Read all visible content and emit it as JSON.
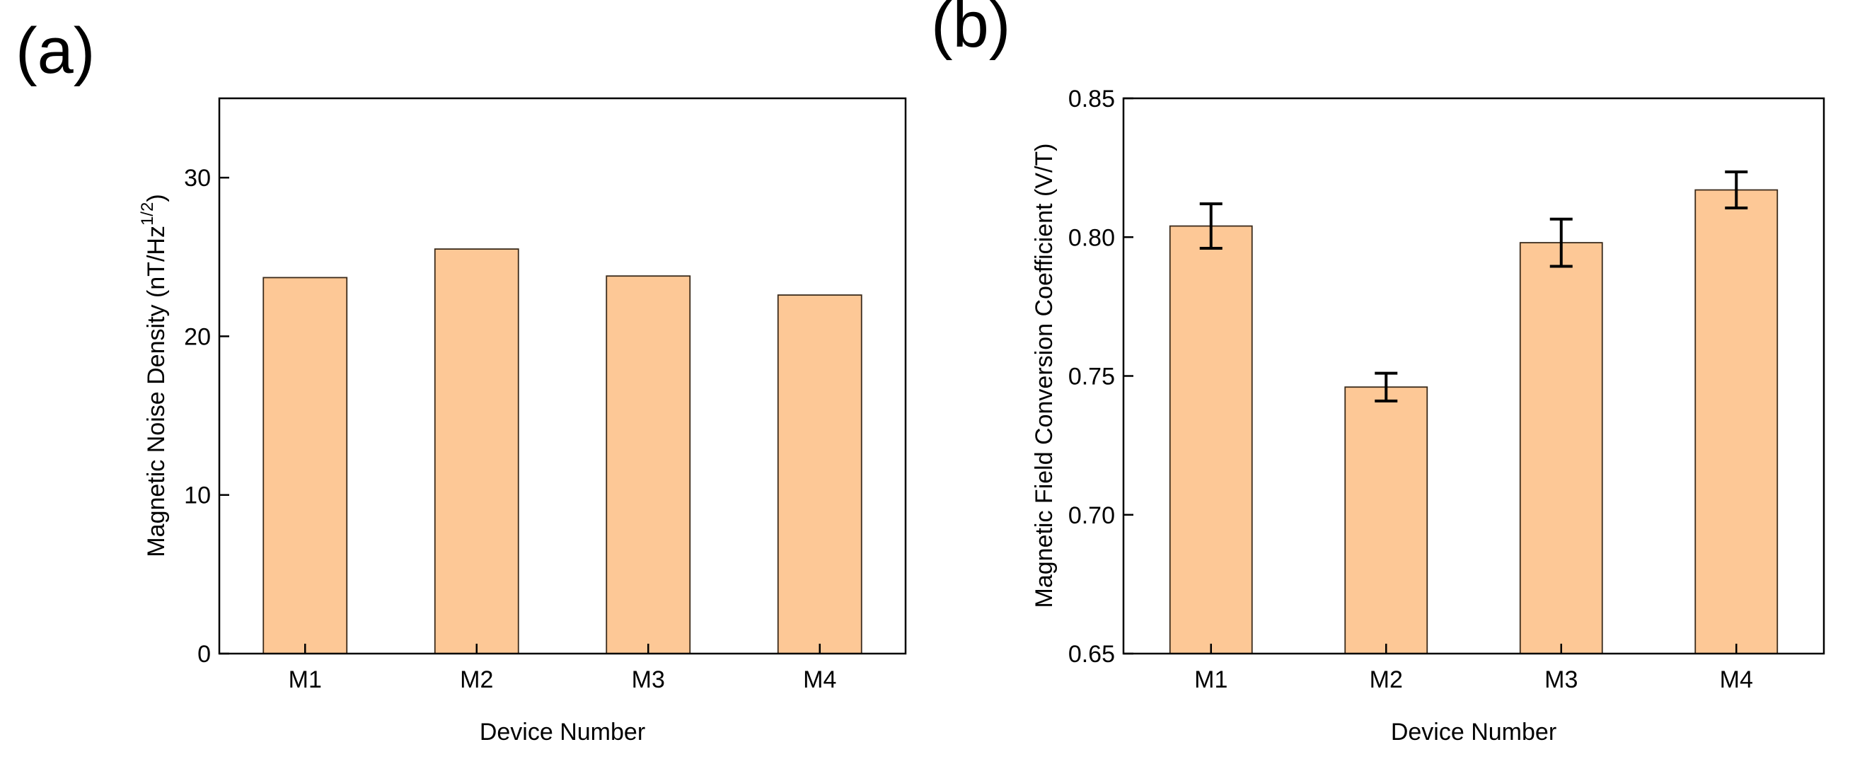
{
  "panels": {
    "a": {
      "label": "(a)"
    },
    "b": {
      "label": "(b)"
    }
  },
  "colors": {
    "bar_fill": "#FDC896",
    "bar_stroke": "#3a2a1a"
  },
  "chart_data": [
    {
      "panel": "(a)",
      "type": "bar",
      "categories": [
        "M1",
        "M2",
        "M3",
        "M4"
      ],
      "values": [
        23.7,
        25.5,
        23.8,
        22.6
      ],
      "xlabel": "Device Number",
      "ylabel_main": "Magnetic Noise Density (nT/Hz",
      "ylabel_sup": "1/2",
      "ylabel_end": ")",
      "ylim": [
        0,
        35
      ],
      "yticks": [
        0,
        10,
        20,
        30
      ],
      "ytick_labels": [
        "0",
        "10",
        "20",
        "30"
      ],
      "grid": false
    },
    {
      "panel": "(b)",
      "type": "bar",
      "categories": [
        "M1",
        "M2",
        "M3",
        "M4"
      ],
      "values": [
        0.804,
        0.746,
        0.798,
        0.817
      ],
      "errors": [
        0.008,
        0.005,
        0.0085,
        0.0065
      ],
      "xlabel": "Device Number",
      "ylabel": "Magnetic Field Conversion Coefficient (V/T)",
      "ylim": [
        0.65,
        0.85
      ],
      "yticks": [
        0.65,
        0.7,
        0.75,
        0.8,
        0.85
      ],
      "ytick_labels": [
        "0.65",
        "0.70",
        "0.75",
        "0.80",
        "0.85"
      ],
      "grid": false
    }
  ]
}
